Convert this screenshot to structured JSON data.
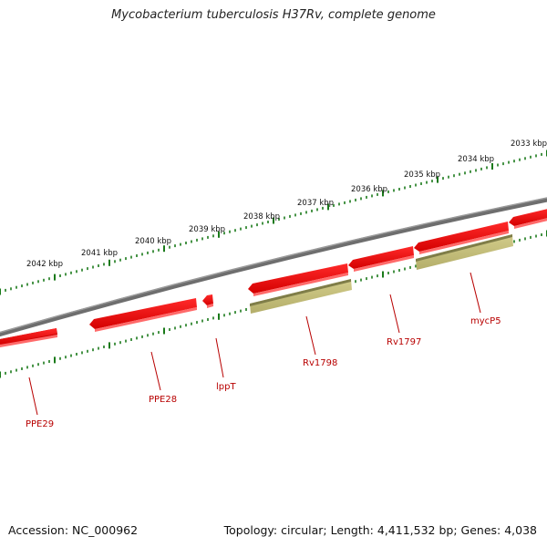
{
  "title": "Mycobacterium tuberculosis H37Rv, complete genome",
  "footer": {
    "accession": "Accession: NC_000962",
    "summary": "Topology: circular; Length: 4,411,532 bp; Genes: 4,038"
  },
  "colors": {
    "backbone": "#808080",
    "tick": "#1a7a1a",
    "cds": "#ff0000",
    "cds_dark": "#c40000",
    "gene": "#bdb76b",
    "gene_dark": "#808050",
    "label": "#b80000"
  },
  "kbp_ticks": [
    "2042 kbp",
    "2041 kbp",
    "2040 kbp",
    "2039 kbp",
    "2038 kbp",
    "2037 kbp",
    "2036 kbp",
    "2035 kbp",
    "2034 kbp",
    "2033 kbp"
  ],
  "gene_labels": [
    "PPE29",
    "PPE28",
    "lppT",
    "Rv1798",
    "Rv1797",
    "mycP5"
  ]
}
